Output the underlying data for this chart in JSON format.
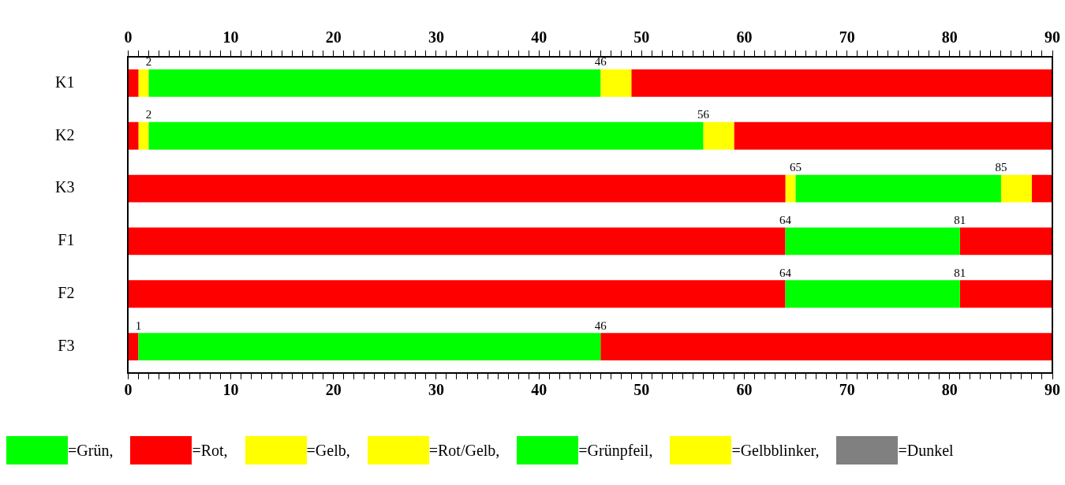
{
  "chart_data": {
    "type": "bar",
    "orientation": "horizontal",
    "categories": [
      "K1",
      "K2",
      "K3",
      "F1",
      "F2",
      "F3"
    ],
    "series": [
      {
        "name": "=Grün,",
        "color": "#00ff00",
        "base": [
          2,
          2,
          65,
          64,
          64,
          1
        ],
        "values": [
          44,
          54,
          20,
          17,
          17,
          45
        ]
      },
      {
        "name": "=Rot,",
        "color": "#ff0000",
        "base": [
          0,
          0,
          0,
          0,
          0,
          0
        ],
        "values": [
          1,
          1,
          64,
          64,
          64,
          1
        ]
      },
      {
        "name": "=Gelb,",
        "color": "#ffff00",
        "base": [
          46,
          56,
          85,
          null,
          null,
          null
        ],
        "values": [
          3,
          3,
          3,
          null,
          null,
          null
        ]
      },
      {
        "name": "=Rot/Gelb,",
        "color": "#ffff00",
        "base": [
          1,
          1,
          64,
          null,
          null,
          null
        ],
        "values": [
          1,
          1,
          1,
          null,
          null,
          null
        ]
      },
      {
        "name": "=Grünpfeil,",
        "color": "#00ff00",
        "values": [
          null,
          null,
          null,
          null,
          null,
          null
        ]
      },
      {
        "name": "=Gelbblinker,",
        "color": "#ffff00",
        "values": [
          null,
          null,
          null,
          null,
          null,
          null
        ]
      },
      {
        "name": "=Dunkel",
        "color": "#808080",
        "values": [
          null,
          null,
          null,
          null,
          null,
          null
        ]
      },
      {
        "color": "#ff0000",
        "base": [
          49,
          59,
          88,
          81,
          81,
          46
        ],
        "values": [
          41,
          31,
          2,
          9,
          9,
          44
        ]
      }
    ],
    "xlim": [
      0,
      90
    ],
    "xticks": [
      0,
      {
        "value": 1,
        "label": null
      },
      {
        "value": 2,
        "label": null
      },
      {
        "value": 3,
        "label": null
      },
      {
        "value": 4,
        "label": null
      },
      {
        "value": 5,
        "label": null
      },
      {
        "value": 6,
        "label": null
      },
      {
        "value": 7,
        "label": null
      },
      {
        "value": 8,
        "label": null
      },
      {
        "value": 9,
        "label": null
      },
      10,
      {
        "value": 11,
        "label": null
      },
      {
        "value": 12,
        "label": null
      },
      {
        "value": 13,
        "label": null
      },
      {
        "value": 14,
        "label": null
      },
      {
        "value": 15,
        "label": null
      },
      {
        "value": 16,
        "label": null
      },
      {
        "value": 17,
        "label": null
      },
      {
        "value": 18,
        "label": null
      },
      {
        "value": 19,
        "label": null
      },
      20,
      {
        "value": 21,
        "label": null
      },
      {
        "value": 22,
        "label": null
      },
      {
        "value": 23,
        "label": null
      },
      {
        "value": 24,
        "label": null
      },
      {
        "value": 25,
        "label": null
      },
      {
        "value": 26,
        "label": null
      },
      {
        "value": 27,
        "label": null
      },
      {
        "value": 28,
        "label": null
      },
      {
        "value": 29,
        "label": null
      },
      30,
      {
        "value": 31,
        "label": null
      },
      {
        "value": 32,
        "label": null
      },
      {
        "value": 33,
        "label": null
      },
      {
        "value": 34,
        "label": null
      },
      {
        "value": 35,
        "label": null
      },
      {
        "value": 36,
        "label": null
      },
      {
        "value": 37,
        "label": null
      },
      {
        "value": 38,
        "label": null
      },
      {
        "value": 39,
        "label": null
      },
      40,
      {
        "value": 41,
        "label": null
      },
      {
        "value": 42,
        "label": null
      },
      {
        "value": 43,
        "label": null
      },
      {
        "value": 44,
        "label": null
      },
      {
        "value": 45,
        "label": null
      },
      {
        "value": 46,
        "label": null
      },
      {
        "value": 47,
        "label": null
      },
      {
        "value": 48,
        "label": null
      },
      {
        "value": 49,
        "label": null
      },
      50,
      {
        "value": 51,
        "label": null
      },
      {
        "value": 52,
        "label": null
      },
      {
        "value": 53,
        "label": null
      },
      {
        "value": 54,
        "label": null
      },
      {
        "value": 55,
        "label": null
      },
      {
        "value": 56,
        "label": null
      },
      {
        "value": 57,
        "label": null
      },
      {
        "value": 58,
        "label": null
      },
      {
        "value": 59,
        "label": null
      },
      60,
      {
        "value": 61,
        "label": null
      },
      {
        "value": 62,
        "label": null
      },
      {
        "value": 63,
        "label": null
      },
      {
        "value": 64,
        "label": null
      },
      {
        "value": 65,
        "label": null
      },
      {
        "value": 66,
        "label": null
      },
      {
        "value": 67,
        "label": null
      },
      {
        "value": 68,
        "label": null
      },
      {
        "value": 69,
        "label": null
      },
      70,
      {
        "value": 71,
        "label": null
      },
      {
        "value": 72,
        "label": null
      },
      {
        "value": 73,
        "label": null
      },
      {
        "value": 74,
        "label": null
      },
      {
        "value": 75,
        "label": null
      },
      {
        "value": 76,
        "label": null
      },
      {
        "value": 77,
        "label": null
      },
      {
        "value": 78,
        "label": null
      },
      {
        "value": 79,
        "label": null
      },
      80,
      {
        "value": 81,
        "label": null
      },
      {
        "value": 82,
        "label": null
      },
      {
        "value": 83,
        "label": null
      },
      {
        "value": 84,
        "label": null
      },
      {
        "value": 85,
        "label": null
      },
      {
        "value": 86,
        "label": null
      },
      {
        "value": 87,
        "label": null
      },
      {
        "value": 88,
        "label": null
      },
      {
        "value": 89,
        "label": null
      },
      90
    ],
    "x2lim": [
      0,
      90
    ],
    "x2ticks": [
      0,
      {
        "value": 1,
        "label": null
      },
      {
        "value": 2,
        "label": null
      },
      {
        "value": 3,
        "label": null
      },
      {
        "value": 4,
        "label": null
      },
      {
        "value": 5,
        "label": null
      },
      {
        "value": 6,
        "label": null
      },
      {
        "value": 7,
        "label": null
      },
      {
        "value": 8,
        "label": null
      },
      {
        "value": 9,
        "label": null
      },
      10,
      {
        "value": 11,
        "label": null
      },
      {
        "value": 12,
        "label": null
      },
      {
        "value": 13,
        "label": null
      },
      {
        "value": 14,
        "label": null
      },
      {
        "value": 15,
        "label": null
      },
      {
        "value": 16,
        "label": null
      },
      {
        "value": 17,
        "label": null
      },
      {
        "value": 18,
        "label": null
      },
      {
        "value": 19,
        "label": null
      },
      20,
      {
        "value": 21,
        "label": null
      },
      {
        "value": 22,
        "label": null
      },
      {
        "value": 23,
        "label": null
      },
      {
        "value": 24,
        "label": null
      },
      {
        "value": 25,
        "label": null
      },
      {
        "value": 26,
        "label": null
      },
      {
        "value": 27,
        "label": null
      },
      {
        "value": 28,
        "label": null
      },
      {
        "value": 29,
        "label": null
      },
      30,
      {
        "value": 31,
        "label": null
      },
      {
        "value": 32,
        "label": null
      },
      {
        "value": 33,
        "label": null
      },
      {
        "value": 34,
        "label": null
      },
      {
        "value": 35,
        "label": null
      },
      {
        "value": 36,
        "label": null
      },
      {
        "value": 37,
        "label": null
      },
      {
        "value": 38,
        "label": null
      },
      {
        "value": 39,
        "label": null
      },
      40,
      {
        "value": 41,
        "label": null
      },
      {
        "value": 42,
        "label": null
      },
      {
        "value": 43,
        "label": null
      },
      {
        "value": 44,
        "label": null
      },
      {
        "value": 45,
        "label": null
      },
      {
        "value": 46,
        "label": null
      },
      {
        "value": 47,
        "label": null
      },
      {
        "value": 48,
        "label": null
      },
      {
        "value": 49,
        "label": null
      },
      50,
      {
        "value": 51,
        "label": null
      },
      {
        "value": 52,
        "label": null
      },
      {
        "value": 53,
        "label": null
      },
      {
        "value": 54,
        "label": null
      },
      {
        "value": 55,
        "label": null
      },
      {
        "value": 56,
        "label": null
      },
      {
        "value": 57,
        "label": null
      },
      {
        "value": 58,
        "label": null
      },
      {
        "value": 59,
        "label": null
      },
      60,
      {
        "value": 61,
        "label": null
      },
      {
        "value": 62,
        "label": null
      },
      {
        "value": 63,
        "label": null
      },
      {
        "value": 64,
        "label": null
      },
      {
        "value": 65,
        "label": null
      },
      {
        "value": 66,
        "label": null
      },
      {
        "value": 67,
        "label": null
      },
      {
        "value": 68,
        "label": null
      },
      {
        "value": 69,
        "label": null
      },
      70,
      {
        "value": 71,
        "label": null
      },
      {
        "value": 72,
        "label": null
      },
      {
        "value": 73,
        "label": null
      },
      {
        "value": 74,
        "label": null
      },
      {
        "value": 75,
        "label": null
      },
      {
        "value": 76,
        "label": null
      },
      {
        "value": 77,
        "label": null
      },
      {
        "value": 78,
        "label": null
      },
      {
        "value": 79,
        "label": null
      },
      80,
      {
        "value": 81,
        "label": null
      },
      {
        "value": 82,
        "label": null
      },
      {
        "value": 83,
        "label": null
      },
      {
        "value": 84,
        "label": null
      },
      {
        "value": 85,
        "label": null
      },
      {
        "value": 86,
        "label": null
      },
      {
        "value": 87,
        "label": null
      },
      {
        "value": 88,
        "label": null
      },
      {
        "value": 89,
        "label": null
      },
      90
    ],
    "annotations": [
      {
        "text": "2",
        "x": 2,
        "y": "K1"
      },
      {
        "text": "46",
        "x": 46,
        "y": "K1"
      },
      {
        "text": "2",
        "x": 2,
        "y": "K2"
      },
      {
        "text": "56",
        "x": 56,
        "y": "K2"
      },
      {
        "text": "65",
        "x": 65,
        "y": "K3"
      },
      {
        "text": "85",
        "x": 85,
        "y": "K3"
      },
      {
        "text": "64",
        "x": 64,
        "y": "F1"
      },
      {
        "text": "81",
        "x": 81,
        "y": "F1"
      },
      {
        "text": "64",
        "x": 64,
        "y": "F2"
      },
      {
        "text": "81",
        "x": 81,
        "y": "F2"
      },
      {
        "text": "1",
        "x": 1,
        "y": "F3"
      },
      {
        "text": "46",
        "x": 46,
        "y": "F3"
      }
    ],
    "grid": false,
    "legend": "bottom"
  }
}
